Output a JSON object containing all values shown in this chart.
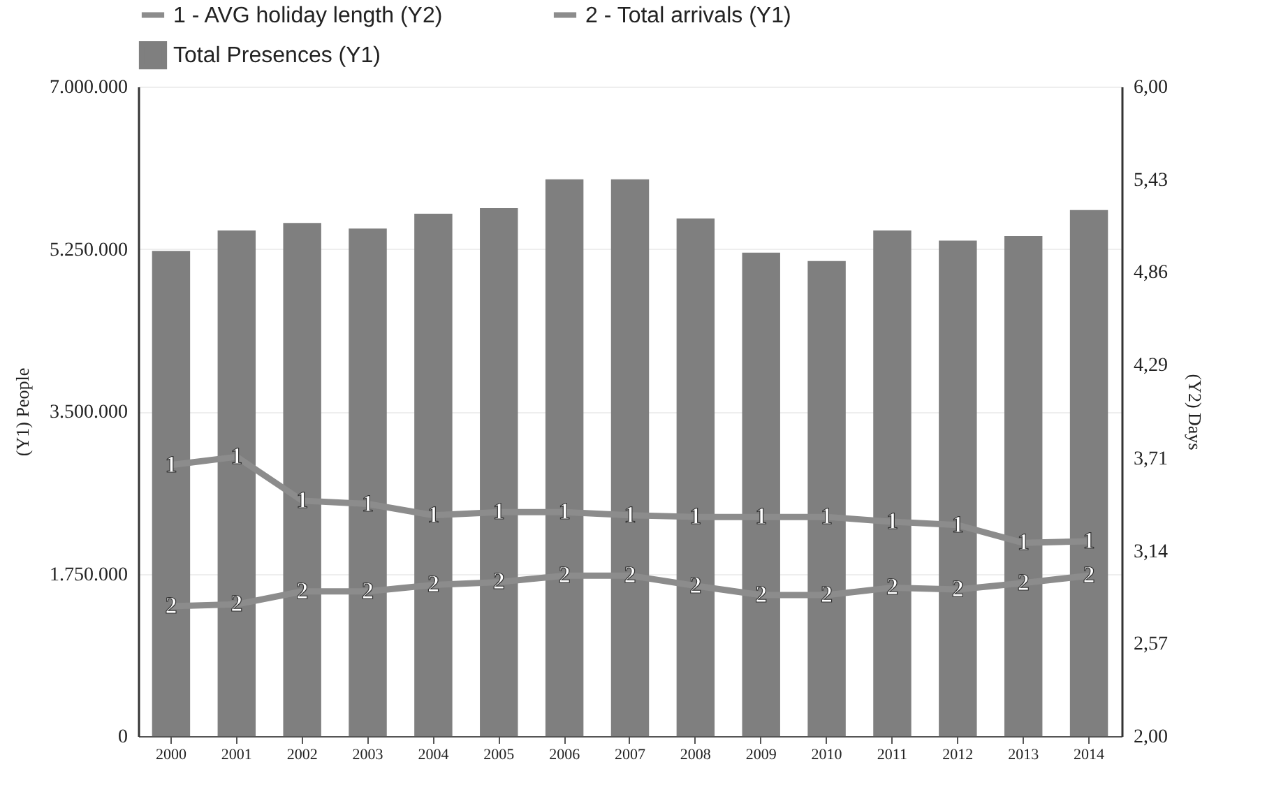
{
  "chart_data": {
    "type": "bar",
    "categories": [
      "2000",
      "2001",
      "2002",
      "2003",
      "2004",
      "2005",
      "2006",
      "2007",
      "2008",
      "2009",
      "2010",
      "2011",
      "2012",
      "2013",
      "2014"
    ],
    "ylabel": "(Y1) People",
    "y2label": "(Y2) Days",
    "series": [
      {
        "name": "1 - AVG holiday length (Y2)",
        "type": "line",
        "axis": "y2",
        "color": "#8c8c8c",
        "values": [
          3.67,
          3.72,
          3.45,
          3.43,
          3.36,
          3.38,
          3.38,
          3.36,
          3.35,
          3.35,
          3.35,
          3.32,
          3.3,
          3.19,
          3.2
        ]
      },
      {
        "name": "2 - Total arrivals (Y1)",
        "type": "line",
        "color": "#8c8c8c",
        "values": [
          1400000,
          1420000,
          1560000,
          1560000,
          1630000,
          1660000,
          1730000,
          1730000,
          1620000,
          1520000,
          1520000,
          1600000,
          1580000,
          1650000,
          1730000
        ]
      },
      {
        "name": "Total Presences (Y1)",
        "type": "bar",
        "color": "#7f7f7f",
        "values": [
          5230000,
          5450000,
          5530000,
          5470000,
          5630000,
          5690000,
          6000000,
          6000000,
          5580000,
          5210000,
          5120000,
          5450000,
          5340000,
          5390000,
          5670000
        ]
      }
    ],
    "annotations": [
      "1",
      "2"
    ],
    "ylim": [
      0,
      7000000
    ],
    "yticks": [
      {
        "value": 0,
        "label": "0"
      },
      {
        "value": 1750000,
        "label": "1.750.000"
      },
      {
        "value": 3500000,
        "label": "3.500.000"
      },
      {
        "value": 5250000,
        "label": "5.250.000"
      },
      {
        "value": 7000000,
        "label": "7.000.000"
      }
    ],
    "y2lim": [
      2,
      6
    ],
    "y2ticks": [
      {
        "value": 2,
        "label": "2,00"
      },
      {
        "value": 2.57,
        "label": "2,57"
      },
      {
        "value": 3.14,
        "label": "3,14"
      },
      {
        "value": 3.71,
        "label": "3,71"
      },
      {
        "value": 4.29,
        "label": "4,29"
      },
      {
        "value": 4.86,
        "label": "4,86"
      },
      {
        "value": 5.43,
        "label": "5,43"
      },
      {
        "value": 6,
        "label": "6,00"
      }
    ],
    "grid": "y",
    "legend": "top left"
  }
}
